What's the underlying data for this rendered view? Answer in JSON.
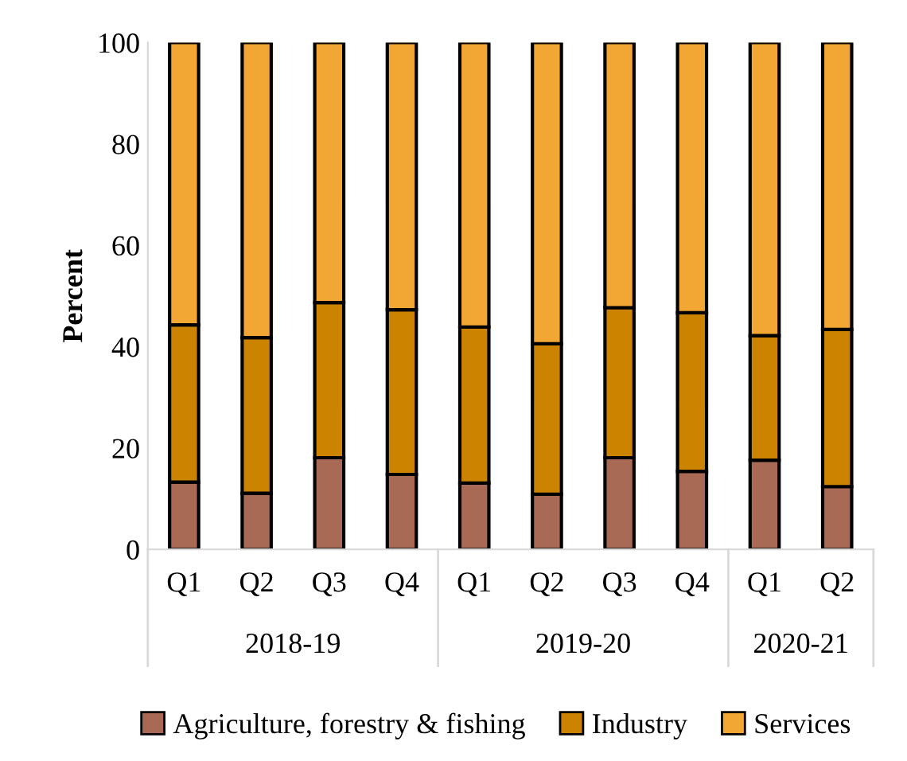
{
  "chart_data": {
    "type": "bar",
    "stacked": true,
    "ylabel": "Percent",
    "categories": [
      "Q1",
      "Q2",
      "Q3",
      "Q4",
      "Q1",
      "Q2",
      "Q3",
      "Q4",
      "Q1",
      "Q2"
    ],
    "series": [
      {
        "name": "Agriculture, forestry & fishing",
        "color": "#a86a55",
        "values": [
          13.3,
          11.1,
          18.1,
          14.8,
          13.1,
          10.9,
          18.1,
          15.4,
          17.6,
          12.4
        ]
      },
      {
        "name": "Industry",
        "color": "#cc8400",
        "values": [
          31.0,
          30.7,
          30.6,
          32.5,
          30.8,
          29.7,
          29.6,
          31.3,
          24.6,
          31.0
        ]
      },
      {
        "name": "Services",
        "color": "#f2a633",
        "values": [
          55.7,
          58.2,
          51.3,
          52.7,
          56.1,
          59.4,
          52.3,
          53.3,
          57.8,
          56.6
        ]
      }
    ],
    "annotations": [
      "2018-19",
      "2019-20",
      "2020-21"
    ],
    "ylim": [
      0,
      100
    ],
    "yticks": [
      0,
      20,
      40,
      60,
      80,
      100
    ],
    "grid": false,
    "legend": "bottom"
  }
}
